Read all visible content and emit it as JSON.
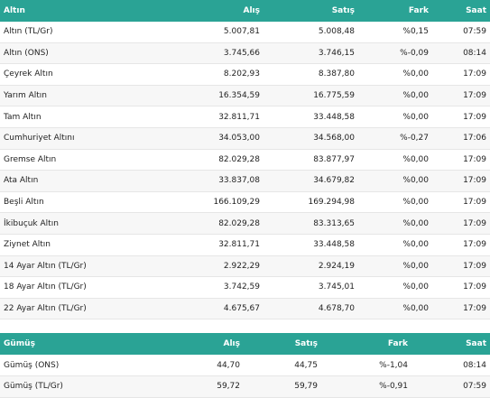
{
  "gold": {
    "headers": {
      "name": "Altın",
      "buy": "Alış",
      "sell": "Satış",
      "change": "Fark",
      "time": "Saat"
    },
    "rows": [
      {
        "name": "Altın (TL/Gr)",
        "buy": "5.007,81",
        "sell": "5.008,48",
        "change": "%0,15",
        "time": "07:59"
      },
      {
        "name": "Altın (ONS)",
        "buy": "3.745,66",
        "sell": "3.746,15",
        "change": "%-0,09",
        "time": "08:14"
      },
      {
        "name": "Çeyrek Altın",
        "buy": "8.202,93",
        "sell": "8.387,80",
        "change": "%0,00",
        "time": "17:09"
      },
      {
        "name": "Yarım Altın",
        "buy": "16.354,59",
        "sell": "16.775,59",
        "change": "%0,00",
        "time": "17:09"
      },
      {
        "name": "Tam Altın",
        "buy": "32.811,71",
        "sell": "33.448,58",
        "change": "%0,00",
        "time": "17:09"
      },
      {
        "name": "Cumhuriyet Altını",
        "buy": "34.053,00",
        "sell": "34.568,00",
        "change": "%-0,27",
        "time": "17:06"
      },
      {
        "name": "Gremse Altın",
        "buy": "82.029,28",
        "sell": "83.877,97",
        "change": "%0,00",
        "time": "17:09"
      },
      {
        "name": "Ata Altın",
        "buy": "33.837,08",
        "sell": "34.679,82",
        "change": "%0,00",
        "time": "17:09"
      },
      {
        "name": "Beşli Altın",
        "buy": "166.109,29",
        "sell": "169.294,98",
        "change": "%0,00",
        "time": "17:09"
      },
      {
        "name": "İkibuçuk Altın",
        "buy": "82.029,28",
        "sell": "83.313,65",
        "change": "%0,00",
        "time": "17:09"
      },
      {
        "name": "Ziynet Altın",
        "buy": "32.811,71",
        "sell": "33.448,58",
        "change": "%0,00",
        "time": "17:09"
      },
      {
        "name": "14 Ayar Altın (TL/Gr)",
        "buy": "2.922,29",
        "sell": "2.924,19",
        "change": "%0,00",
        "time": "17:09"
      },
      {
        "name": "18 Ayar Altın (TL/Gr)",
        "buy": "3.742,59",
        "sell": "3.745,01",
        "change": "%0,00",
        "time": "17:09"
      },
      {
        "name": "22 Ayar Altın (TL/Gr)",
        "buy": "4.675,67",
        "sell": "4.678,70",
        "change": "%0,00",
        "time": "17:09"
      }
    ]
  },
  "silver": {
    "headers": {
      "name": "Gümüş",
      "buy": "Alış",
      "sell": "Satış",
      "change": "Fark",
      "time": "Saat"
    },
    "rows": [
      {
        "name": "Gümüş (ONS)",
        "buy": "44,70",
        "sell": "44,75",
        "change": "%-1,04",
        "time": "08:14"
      },
      {
        "name": "Gümüş (TL/Gr)",
        "buy": "59,72",
        "sell": "59,79",
        "change": "%-0,91",
        "time": "07:59"
      }
    ]
  },
  "colors": {
    "header_bg": "#2aa395",
    "header_text": "#ffffff",
    "row_alt": "#f7f7f7"
  }
}
